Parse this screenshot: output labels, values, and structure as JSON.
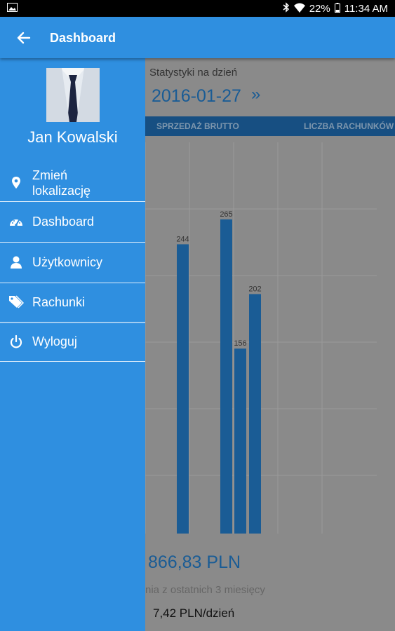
{
  "status_bar": {
    "battery": "22%",
    "time": "11:34 AM"
  },
  "app_bar": {
    "title": "Dashboard"
  },
  "drawer": {
    "user_name": "Jan Kowalski",
    "items": [
      {
        "label": "Zmień lokalizację",
        "icon": "location-pin-icon"
      },
      {
        "label": "Dashboard",
        "icon": "speedometer-icon"
      },
      {
        "label": "Użytkownicy",
        "icon": "user-icon"
      },
      {
        "label": "Rachunki",
        "icon": "tags-icon"
      },
      {
        "label": "Wyloguj",
        "icon": "power-icon"
      }
    ]
  },
  "dashboard": {
    "stats_label": "Statystyki na dzień",
    "date": "2016-01-27",
    "tabs": [
      "SPRZEDAŻ BRUTTO",
      "LICZBA RACHUNKÓW"
    ],
    "total_value": "866,83 PLN",
    "subtext": "nia z ostatnich 3 miesięcy",
    "per_day": "7,42 PLN/dzień"
  },
  "chart_data": {
    "type": "bar",
    "values": [
      244,
      265,
      156,
      202
    ],
    "data_labels": [
      "244",
      "265",
      "156",
      "202"
    ],
    "ylim": [
      0,
      330
    ]
  },
  "colors": {
    "primary": "#2f8fe0",
    "dark_blue": "#1a5c95",
    "bar": "#1a5c95",
    "scrim": "#8a8a8a"
  }
}
